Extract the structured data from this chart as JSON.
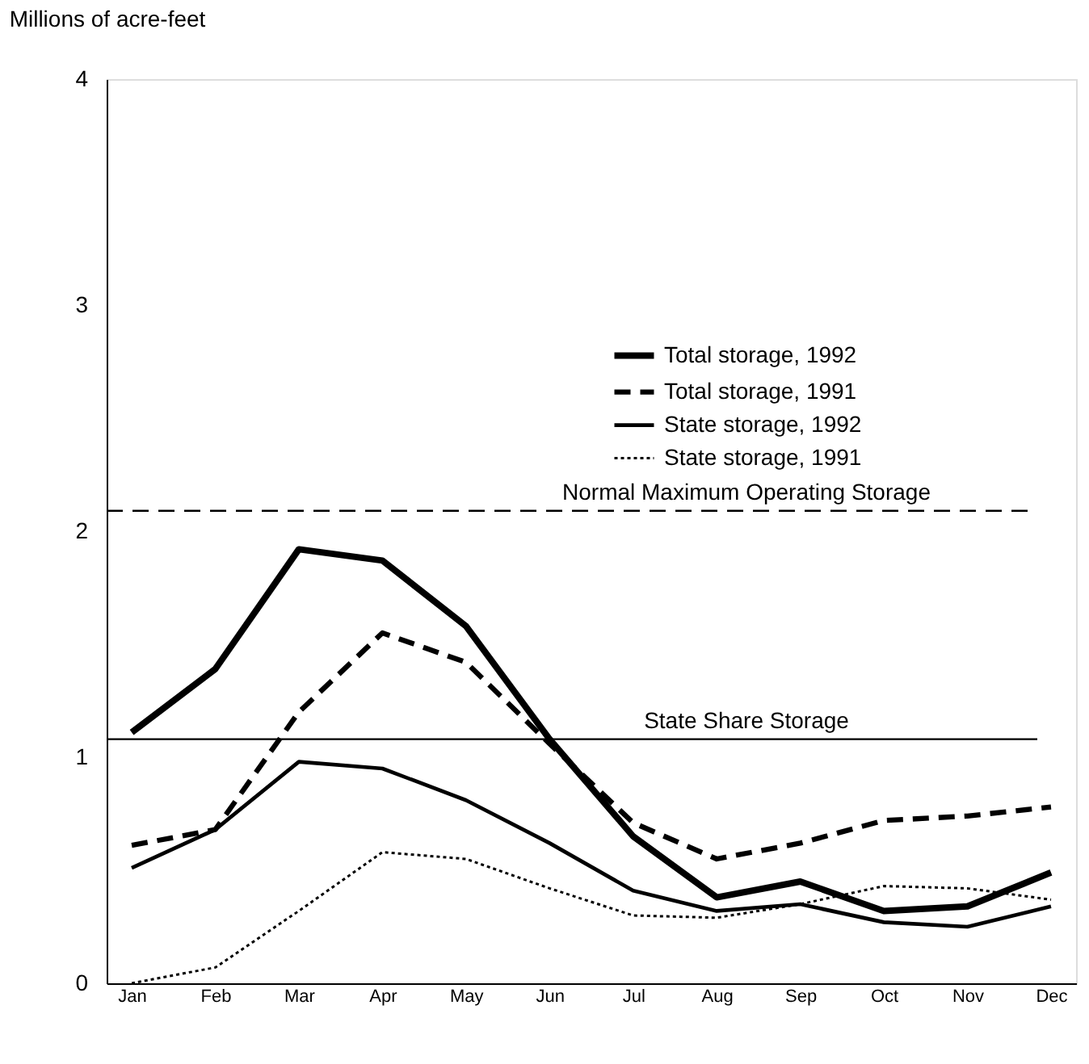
{
  "chart_data": {
    "type": "line",
    "ylabel": "Millions of acre-feet",
    "categories": [
      "Jan",
      "Feb",
      "Mar",
      "Apr",
      "May",
      "Jun",
      "Jul",
      "Aug",
      "Sep",
      "Oct",
      "Nov",
      "Dec"
    ],
    "series": [
      {
        "name": "Total storage, 1992",
        "color": "#000000",
        "line_style": "solid",
        "values": [
          1.11,
          1.39,
          1.92,
          1.87,
          1.58,
          1.08,
          0.65,
          0.38,
          0.45,
          0.32,
          0.34,
          0.49
        ]
      },
      {
        "name": "Total storage, 1991",
        "color": "#000000",
        "line_style": "dashed",
        "values": [
          0.61,
          0.68,
          1.2,
          1.55,
          1.42,
          1.06,
          0.71,
          0.55,
          0.62,
          0.72,
          0.74,
          0.78
        ]
      },
      {
        "name": "State storage, 1992",
        "color": "#000000",
        "line_style": "solid",
        "values": [
          0.51,
          0.68,
          0.98,
          0.95,
          0.81,
          0.62,
          0.41,
          0.32,
          0.35,
          0.27,
          0.25,
          0.34
        ]
      },
      {
        "name": "State storage, 1991",
        "color": "#000000",
        "line_style": "dotted",
        "values": [
          0.0,
          0.07,
          0.32,
          0.58,
          0.55,
          0.42,
          0.3,
          0.29,
          0.35,
          0.43,
          0.42,
          0.37
        ]
      }
    ],
    "ylim": [
      0,
      4
    ],
    "yticks": [
      0,
      1,
      2,
      3,
      4
    ],
    "grid": false,
    "legend": "top right",
    "marker": "none",
    "ref_lines": [
      {
        "axis": "y",
        "value": 2.09,
        "label": "Normal Maximum Operating Storage",
        "color": "#000000",
        "line_style": "dashed"
      },
      {
        "axis": "y",
        "value": 1.08,
        "label": "State Share Storage",
        "color": "#000000",
        "line_style": "solid"
      }
    ]
  }
}
